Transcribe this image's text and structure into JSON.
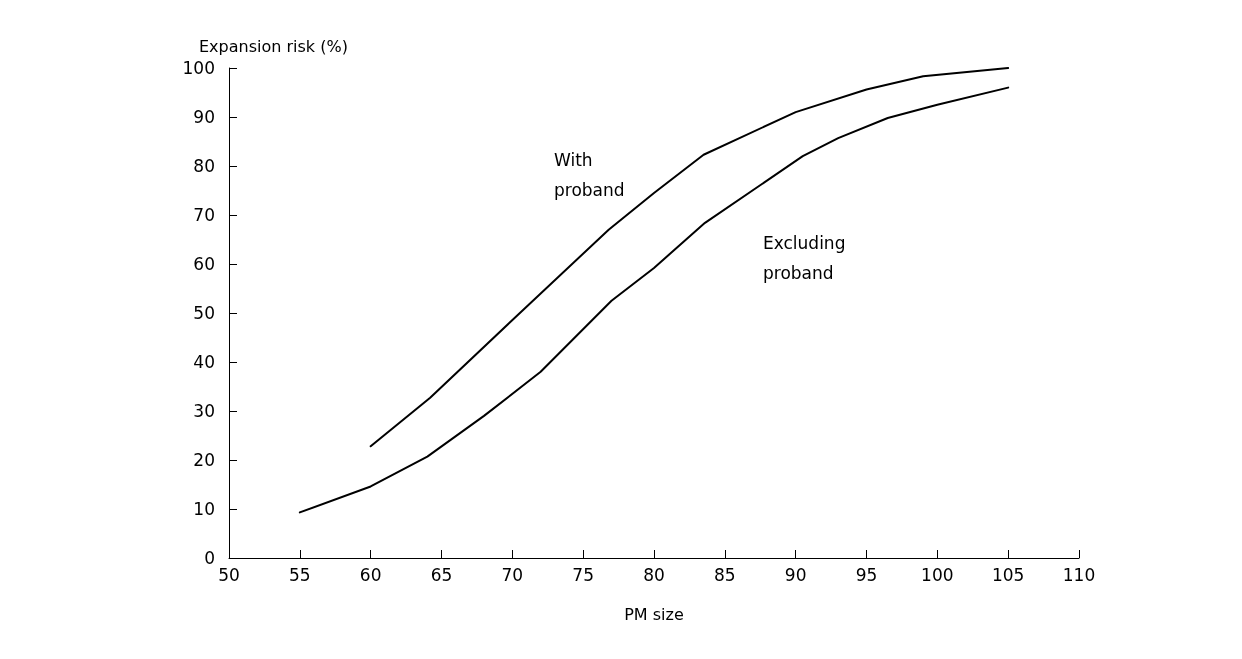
{
  "chart_data": {
    "type": "line",
    "xlabel": "PM size",
    "ylabel": "Expansion risk (%)",
    "xlim": [
      50,
      110
    ],
    "xticks": [
      50,
      55,
      60,
      65,
      70,
      75,
      80,
      85,
      90,
      95,
      100,
      105,
      110
    ],
    "ylim": [
      0,
      100
    ],
    "yticks": [
      0,
      10,
      20,
      30,
      40,
      50,
      60,
      70,
      80,
      90,
      100
    ],
    "grid": false,
    "legend": false,
    "marker": "none",
    "line_style": "solid",
    "series": [
      {
        "name": "With proband",
        "color": "#000000",
        "x": [
          60,
          64.2,
          69.8,
          76.8,
          80,
          83.5,
          90,
          95,
          99,
          105
        ],
        "values": [
          22.8,
          32.7,
          48,
          67,
          74.5,
          82.3,
          91,
          95.6,
          98.3,
          100
        ]
      },
      {
        "name": "Excluding proband",
        "color": "#000000",
        "x": [
          55,
          60,
          64,
          68,
          72,
          77,
          80,
          83.6,
          90.5,
          93,
          96.5,
          100,
          105
        ],
        "values": [
          9.3,
          14.6,
          20.7,
          29,
          38,
          52.5,
          59.2,
          68.4,
          82,
          85.7,
          89.8,
          92.5,
          96
        ]
      }
    ]
  }
}
